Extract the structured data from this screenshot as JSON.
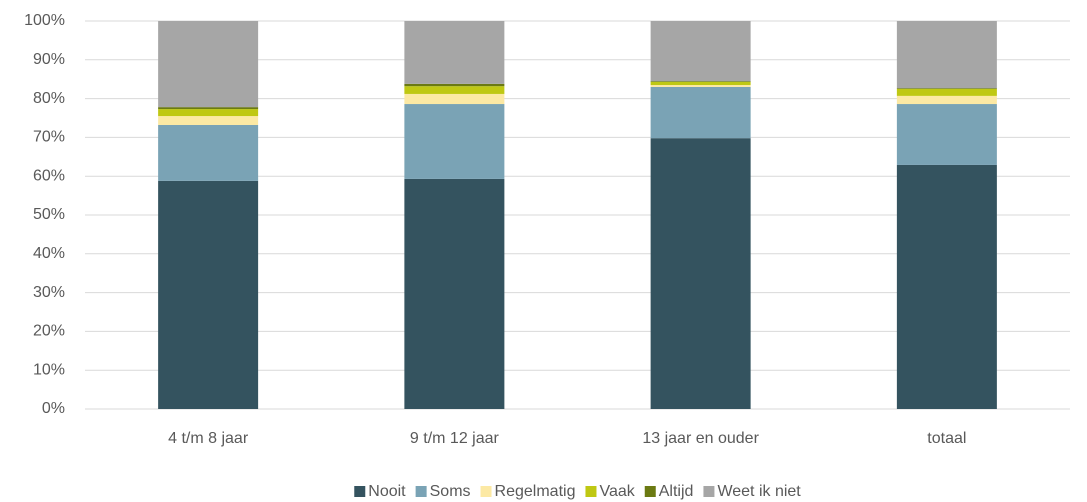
{
  "chart_data": {
    "type": "stacked_bar",
    "categories": [
      "4 t/m 8 jaar",
      "9 t/m 12 jaar",
      "13 jaar en ouder",
      "totaal"
    ],
    "series": [
      {
        "name": "Nooit",
        "color": "#34535f",
        "values": [
          58.8,
          59.3,
          69.8,
          62.9
        ]
      },
      {
        "name": "Soms",
        "color": "#7aa3b5",
        "values": [
          14.4,
          19.3,
          13.2,
          15.7
        ]
      },
      {
        "name": "Regelmatig",
        "color": "#fce9a4",
        "values": [
          2.3,
          2.6,
          0.5,
          2.1
        ]
      },
      {
        "name": "Vaak",
        "color": "#bfc813",
        "values": [
          1.8,
          2.0,
          0.8,
          1.8
        ]
      },
      {
        "name": "Altijd",
        "color": "#6b7a12",
        "values": [
          0.5,
          0.6,
          0.2,
          0.2
        ]
      },
      {
        "name": "Weet ik niet",
        "color": "#a6a6a6",
        "values": [
          22.2,
          16.2,
          15.5,
          17.3
        ]
      }
    ],
    "ylim": [
      0,
      100
    ],
    "yticks": [
      {
        "value": 0,
        "label": "0%"
      },
      {
        "value": 10,
        "label": "10%"
      },
      {
        "value": 20,
        "label": "20%"
      },
      {
        "value": 30,
        "label": "30%"
      },
      {
        "value": 40,
        "label": "40%"
      },
      {
        "value": 50,
        "label": "50%"
      },
      {
        "value": 60,
        "label": "60%"
      },
      {
        "value": 70,
        "label": "70%"
      },
      {
        "value": 80,
        "label": "80%"
      },
      {
        "value": 90,
        "label": "90%"
      },
      {
        "value": 100,
        "label": "100%"
      }
    ],
    "grid": true,
    "legend": "bottom"
  }
}
